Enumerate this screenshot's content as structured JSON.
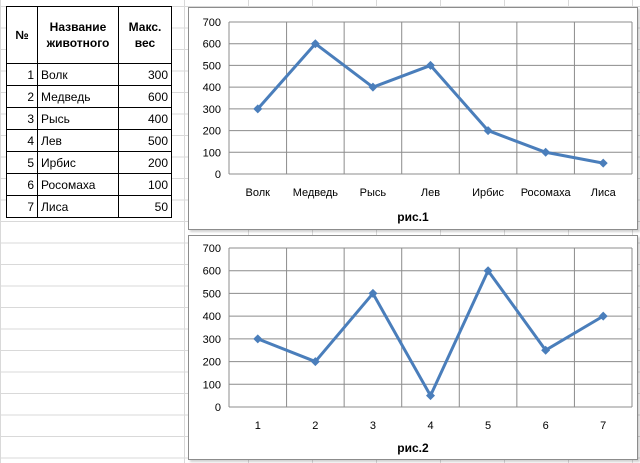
{
  "table": {
    "headers": {
      "num": "№",
      "name": "Название животного",
      "weight": "Макс. вес"
    },
    "rows": [
      {
        "num": "1",
        "name": "Волк",
        "weight": "300"
      },
      {
        "num": "2",
        "name": "Медведь",
        "weight": "600"
      },
      {
        "num": "3",
        "name": "Рысь",
        "weight": "400"
      },
      {
        "num": "4",
        "name": "Лев",
        "weight": "500"
      },
      {
        "num": "5",
        "name": "Ирбис",
        "weight": "200"
      },
      {
        "num": "6",
        "name": "Росомаха",
        "weight": "100"
      },
      {
        "num": "7",
        "name": "Лиса",
        "weight": "50"
      }
    ]
  },
  "colors": {
    "series": "#4a7ebb",
    "grid": "#8c8c8c",
    "axis": "#8c8c8c"
  },
  "chart_data": [
    {
      "type": "line",
      "title": "",
      "caption": "рис.1",
      "categories": [
        "Волк",
        "Медведь",
        "Рысь",
        "Лев",
        "Ирбис",
        "Росомаха",
        "Лиса"
      ],
      "series": [
        {
          "values": [
            300,
            600,
            400,
            500,
            200,
            100,
            50
          ]
        }
      ],
      "ylim": [
        0,
        700
      ],
      "yticks": [
        0,
        100,
        200,
        300,
        400,
        500,
        600,
        700
      ],
      "grid": true,
      "marker": "diamond"
    },
    {
      "type": "line",
      "title": "",
      "caption": "рис.2",
      "categories": [
        "1",
        "2",
        "3",
        "4",
        "5",
        "6",
        "7"
      ],
      "series": [
        {
          "values": [
            300,
            200,
            500,
            50,
            600,
            250,
            400
          ]
        }
      ],
      "ylim": [
        0,
        700
      ],
      "yticks": [
        0,
        100,
        200,
        300,
        400,
        500,
        600,
        700
      ],
      "grid": true,
      "marker": "diamond"
    }
  ]
}
